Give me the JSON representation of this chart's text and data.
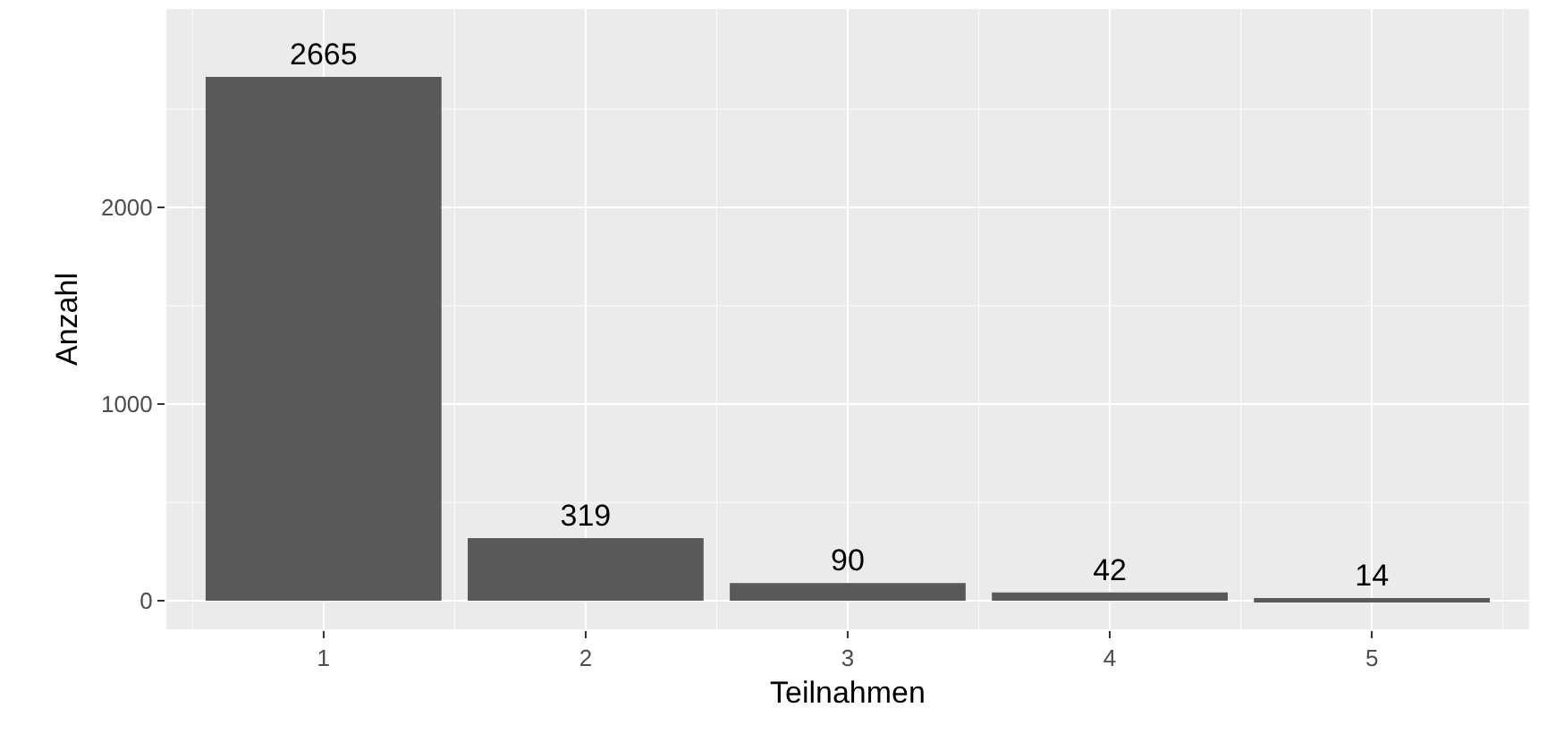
{
  "chart_data": {
    "type": "bar",
    "xlabel": "Teilnahmen",
    "ylabel": "Anzahl",
    "categories": [
      "1",
      "2",
      "3",
      "4",
      "5"
    ],
    "values": [
      2665,
      319,
      90,
      42,
      14
    ],
    "color": "#595959",
    "data_labels": true,
    "ylim": [
      -145,
      3010
    ],
    "yticks": [
      0,
      1000,
      2000
    ],
    "grid": true
  }
}
